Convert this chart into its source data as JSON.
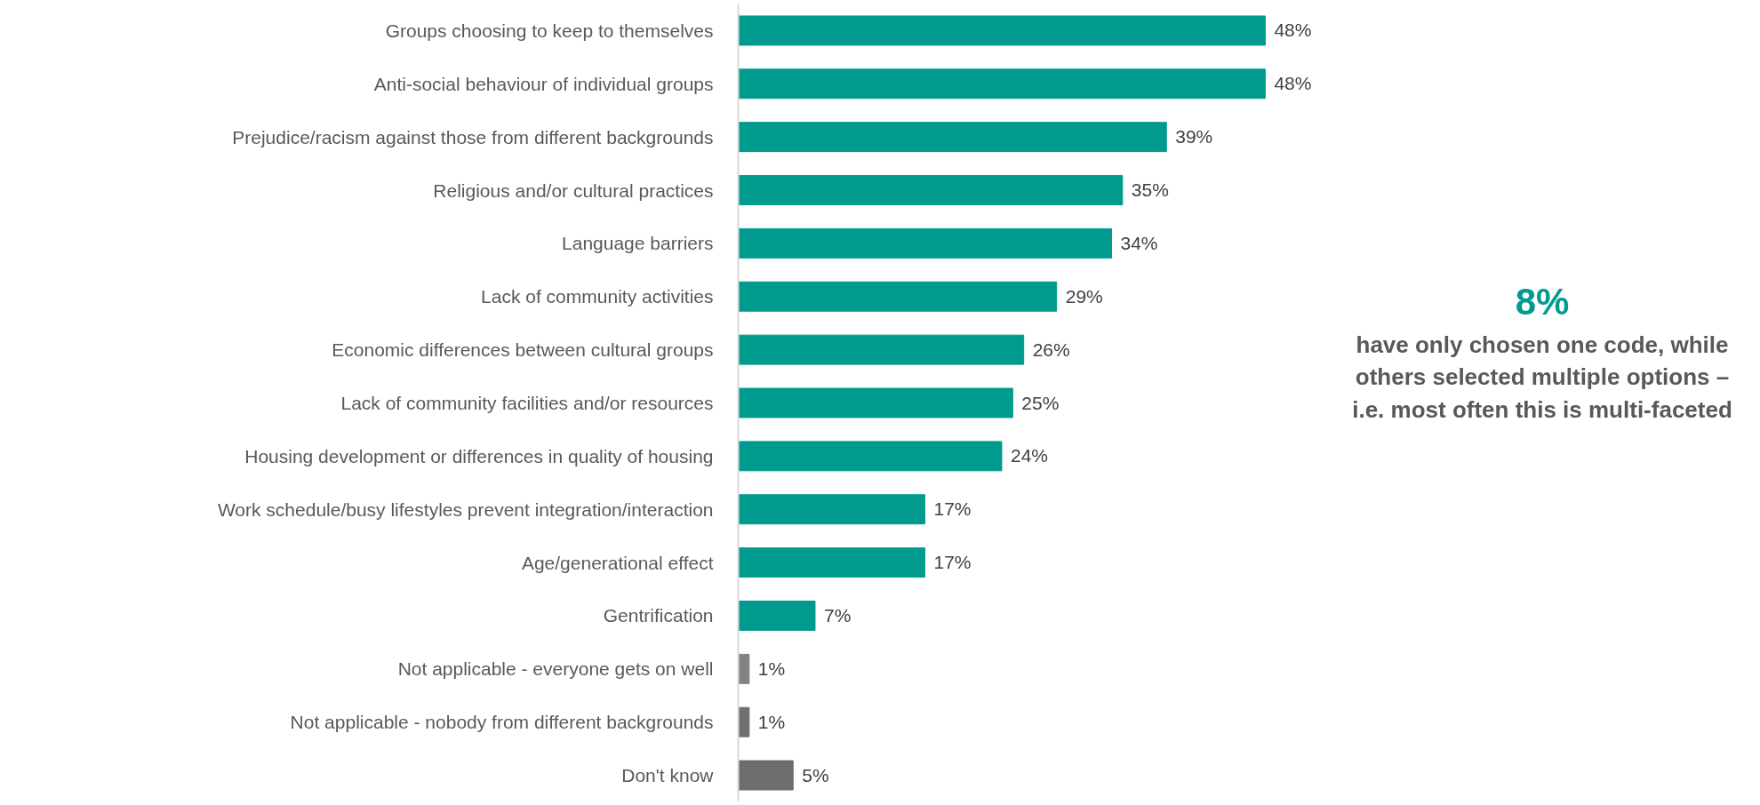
{
  "chart_data": {
    "type": "bar",
    "orientation": "horizontal",
    "categories": [
      "Groups choosing to keep to themselves",
      "Anti-social behaviour of individual groups",
      "Prejudice/racism against those from different backgrounds",
      "Religious and/or cultural practices",
      "Language barriers",
      "Lack of community activities",
      "Economic differences between cultural groups",
      "Lack of community facilities and/or resources",
      "Housing development or differences in quality of housing",
      "Work schedule/busy lifestyles prevent integration/interaction",
      "Age/generational effect",
      "Gentrification",
      "Not applicable - everyone gets on well",
      "Not applicable - nobody from different backgrounds",
      "Don't know"
    ],
    "values": [
      48,
      48,
      39,
      35,
      34,
      29,
      26,
      25,
      24,
      17,
      17,
      7,
      1,
      1,
      5
    ],
    "value_labels": [
      "48%",
      "48%",
      "39%",
      "35%",
      "34%",
      "29%",
      "26%",
      "25%",
      "24%",
      "17%",
      "17%",
      "7%",
      "1%",
      "1%",
      "5%"
    ],
    "colors": [
      "#009a8f",
      "#009a8f",
      "#009a8f",
      "#009a8f",
      "#009a8f",
      "#009a8f",
      "#009a8f",
      "#009a8f",
      "#009a8f",
      "#009a8f",
      "#009a8f",
      "#009a8f",
      "#828282",
      "#6f6f6f",
      "#6d6d6d"
    ],
    "annotations": [
      "8%",
      "have only chosen one code, while others selected multiple options – i.e. most often this is multi-faceted"
    ],
    "grid": false
  }
}
